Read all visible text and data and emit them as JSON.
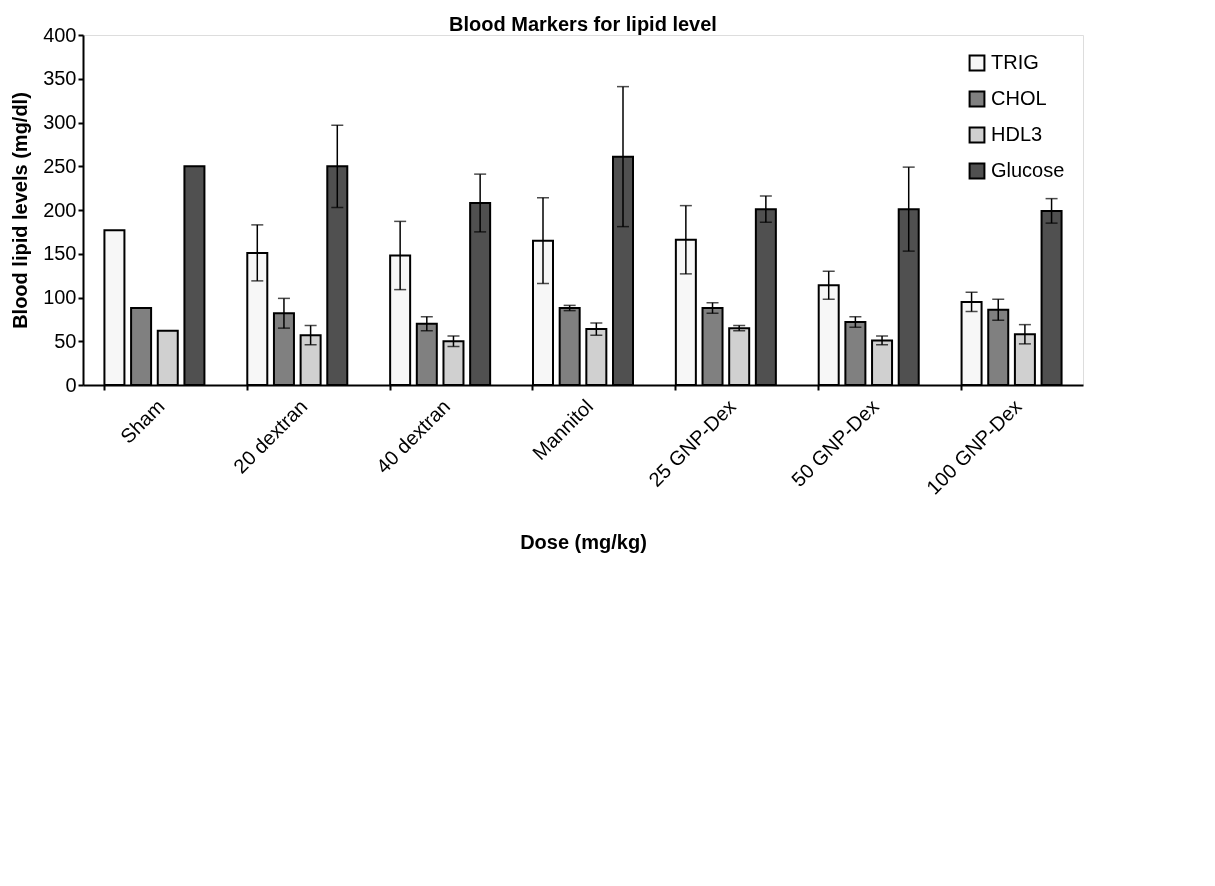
{
  "chart_data": {
    "type": "bar",
    "title": "Blood Markers for lipid level",
    "xlabel": "Dose (mg/kg)",
    "ylabel": "Blood lipid levels (mg/dl)",
    "categories": [
      "Sham",
      "20 dextran",
      "40 dextran",
      "Mannitol",
      "25 GNP-Dex",
      "50  GNP-Dex",
      "100  GNP-Dex"
    ],
    "series": [
      {
        "name": "TRIG",
        "color": "#f7f7f7",
        "values": [
          177,
          151,
          148,
          165,
          166,
          114,
          95
        ],
        "errors": [
          null,
          32,
          39,
          49,
          39,
          16,
          11
        ]
      },
      {
        "name": "CHOL",
        "color": "#808080",
        "values": [
          88,
          82,
          70,
          88,
          88,
          72,
          86
        ],
        "errors": [
          null,
          17,
          8,
          3,
          6,
          6,
          12
        ]
      },
      {
        "name": "HDL3",
        "color": "#d0d0d0",
        "values": [
          62,
          57,
          50,
          64,
          65,
          51,
          58
        ],
        "errors": [
          null,
          11,
          6,
          7,
          3,
          5,
          11
        ]
      },
      {
        "name": "Glucose",
        "color": "#505050",
        "values": [
          250,
          250,
          208,
          261,
          201,
          201,
          199
        ],
        "errors": [
          null,
          47,
          33,
          80,
          15,
          48,
          14
        ]
      }
    ],
    "ylim": [
      0,
      400
    ],
    "yticks": [
      0,
      50,
      100,
      150,
      200,
      250,
      300,
      350,
      400
    ],
    "grid": false,
    "legend": "top right"
  }
}
